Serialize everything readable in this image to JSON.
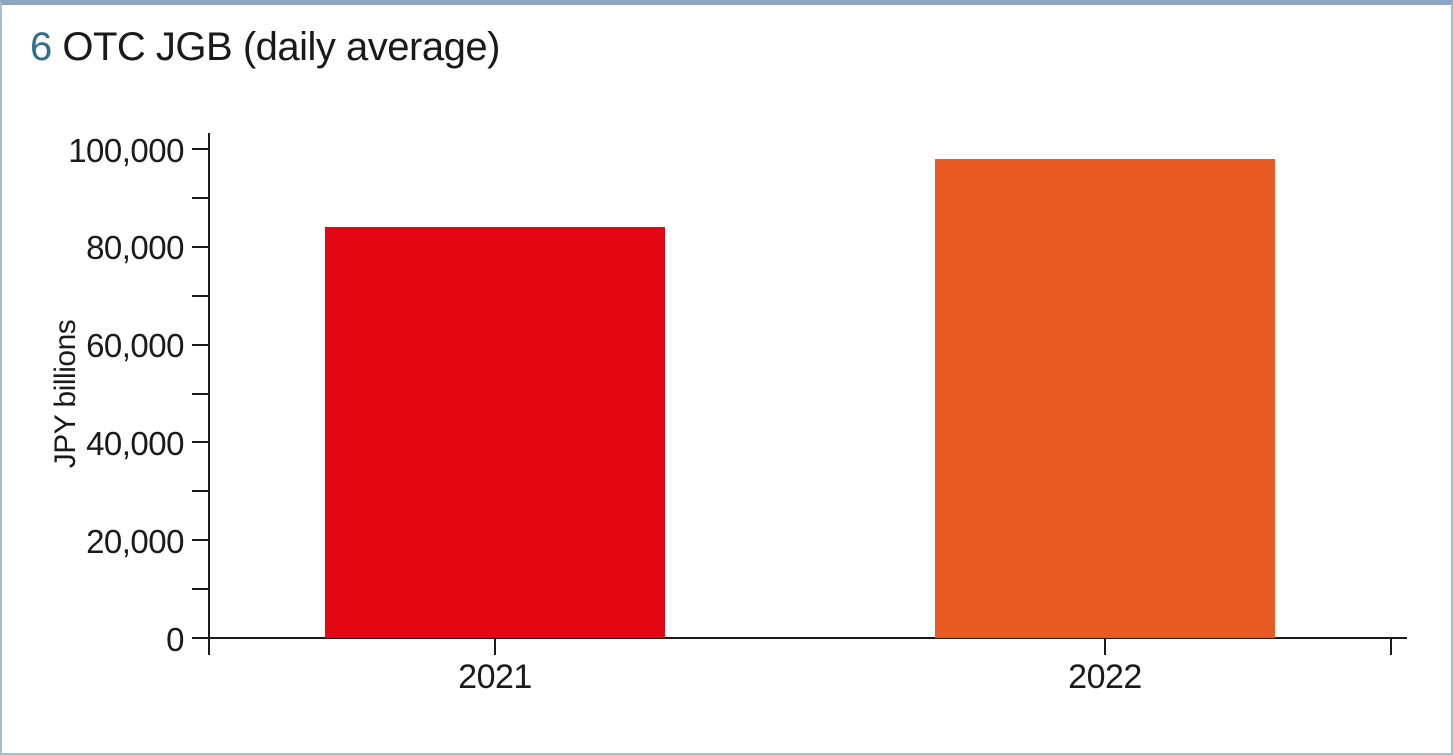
{
  "panel": {
    "title_number": "6",
    "title_text": "OTC JGB (daily average)",
    "accent_color": "#2e6e91",
    "border_top_color": "#8ba6bd",
    "border_side_color": "#aabccb"
  },
  "chart_data": {
    "type": "bar",
    "title": "6 OTC JGB (daily average)",
    "categories": [
      "2021",
      "2022"
    ],
    "values": [
      84000,
      98000
    ],
    "bar_colors": [
      "#e30613",
      "#ea5b23"
    ],
    "xlabel": "",
    "ylabel": "JPY billions",
    "ylim": [
      0,
      100000
    ],
    "ytick_minor_step": 10000,
    "ytick_label_step": 20000,
    "ytick_labels": [
      "0",
      "20,000",
      "40,000",
      "60,000",
      "80,000",
      "100,000"
    ],
    "grid": false,
    "legend_position": "none",
    "axis_color": "#1a1a1a"
  }
}
